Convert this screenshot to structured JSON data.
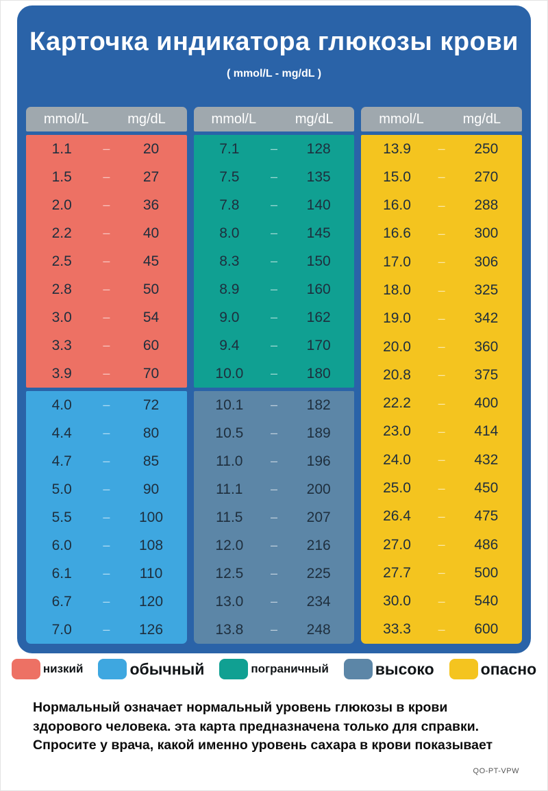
{
  "title": "Карточка индикатора глюкозы крови",
  "subtitle": "( mmol/L - mg/dL )",
  "dash": "–",
  "col_headers": {
    "left": "mmol/L",
    "right": "mg/dL"
  },
  "colors": {
    "card": "#2a63a8",
    "header": "#9fa8ae",
    "low": "#ed7164",
    "normal": "#3ea7e0",
    "borderline": "#10a092",
    "high": "#5c86a7",
    "danger": "#f4c41f"
  },
  "columns": [
    {
      "sections": [
        {
          "key": "low",
          "rows": [
            [
              "1.1",
              "20"
            ],
            [
              "1.5",
              "27"
            ],
            [
              "2.0",
              "36"
            ],
            [
              "2.2",
              "40"
            ],
            [
              "2.5",
              "45"
            ],
            [
              "2.8",
              "50"
            ],
            [
              "3.0",
              "54"
            ],
            [
              "3.3",
              "60"
            ],
            [
              "3.9",
              "70"
            ]
          ]
        },
        {
          "key": "normal",
          "rows": [
            [
              "4.0",
              "72"
            ],
            [
              "4.4",
              "80"
            ],
            [
              "4.7",
              "85"
            ],
            [
              "5.0",
              "90"
            ],
            [
              "5.5",
              "100"
            ],
            [
              "6.0",
              "108"
            ],
            [
              "6.1",
              "110"
            ],
            [
              "6.7",
              "120"
            ],
            [
              "7.0",
              "126"
            ]
          ]
        }
      ]
    },
    {
      "sections": [
        {
          "key": "borderline",
          "rows": [
            [
              "7.1",
              "128"
            ],
            [
              "7.5",
              "135"
            ],
            [
              "7.8",
              "140"
            ],
            [
              "8.0",
              "145"
            ],
            [
              "8.3",
              "150"
            ],
            [
              "8.9",
              "160"
            ],
            [
              "9.0",
              "162"
            ],
            [
              "9.4",
              "170"
            ],
            [
              "10.0",
              "180"
            ]
          ]
        },
        {
          "key": "high",
          "rows": [
            [
              "10.1",
              "182"
            ],
            [
              "10.5",
              "189"
            ],
            [
              "11.0",
              "196"
            ],
            [
              "11.1",
              "200"
            ],
            [
              "11.5",
              "207"
            ],
            [
              "12.0",
              "216"
            ],
            [
              "12.5",
              "225"
            ],
            [
              "13.0",
              "234"
            ],
            [
              "13.8",
              "248"
            ]
          ]
        }
      ]
    },
    {
      "sections": [
        {
          "key": "danger",
          "rows": [
            [
              "13.9",
              "250"
            ],
            [
              "15.0",
              "270"
            ],
            [
              "16.0",
              "288"
            ],
            [
              "16.6",
              "300"
            ],
            [
              "17.0",
              "306"
            ],
            [
              "18.0",
              "325"
            ],
            [
              "19.0",
              "342"
            ],
            [
              "20.0",
              "360"
            ],
            [
              "20.8",
              "375"
            ],
            [
              "22.2",
              "400"
            ],
            [
              "23.0",
              "414"
            ],
            [
              "24.0",
              "432"
            ],
            [
              "25.0",
              "450"
            ],
            [
              "26.4",
              "475"
            ],
            [
              "27.0",
              "486"
            ],
            [
              "27.7",
              "500"
            ],
            [
              "30.0",
              "540"
            ],
            [
              "33.3",
              "600"
            ]
          ]
        }
      ]
    }
  ],
  "legend": [
    {
      "key": "low",
      "label": "низкий",
      "small": true
    },
    {
      "key": "normal",
      "label": "обычный",
      "small": false
    },
    {
      "key": "borderline",
      "label": "пограничный",
      "small": true
    },
    {
      "key": "high",
      "label": "высоко",
      "small": false
    },
    {
      "key": "danger",
      "label": "опасно",
      "small": false
    }
  ],
  "footer": {
    "lines": [
      "Нормальный означает нормальный уровень глюкозы в крови здорового",
      "человека. эта карта предназначена только для справки. Спросите у врача,",
      "какой именно уровень сахара в крови показывает"
    ]
  },
  "code": "QO-PT-VPW"
}
